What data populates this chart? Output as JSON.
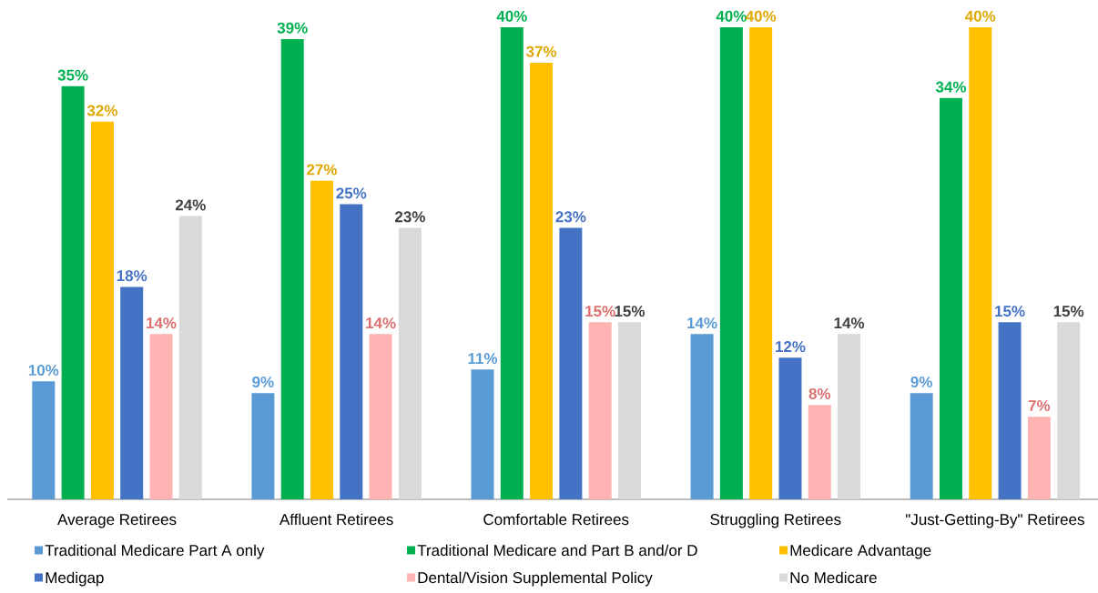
{
  "chart_data": {
    "type": "bar",
    "categories": [
      "Average Retirees",
      "Affluent Retirees",
      "Comfortable Retirees",
      "Struggling Retirees",
      "\"Just-Getting-By\" Retirees"
    ],
    "series": [
      {
        "name": "Traditional Medicare Part A only",
        "color": "#5b9bd5",
        "values": [
          10,
          9,
          11,
          14,
          9
        ],
        "value_labels": [
          "10%",
          "9%",
          "11%",
          "14%",
          "9%"
        ]
      },
      {
        "name": "Traditional Medicare and Part B and/or D",
        "color": "#00b050",
        "values": [
          35,
          39,
          40,
          40,
          34
        ],
        "value_labels": [
          "35%",
          "39%",
          "40%",
          "40%",
          "34%"
        ]
      },
      {
        "name": "Medicare Advantage",
        "color": "#ffc000",
        "values": [
          32,
          27,
          37,
          40,
          40
        ],
        "value_labels": [
          "32%",
          "27%",
          "37%",
          "40%",
          "40%"
        ]
      },
      {
        "name": "Medigap",
        "color": "#4472c4",
        "values": [
          18,
          25,
          23,
          12,
          15
        ],
        "value_labels": [
          "18%",
          "25%",
          "23%",
          "12%",
          "15%"
        ]
      },
      {
        "name": "Dental/Vision Supplemental Policy",
        "color": "#ffb3b3",
        "values": [
          14,
          14,
          15,
          8,
          7
        ],
        "value_labels": [
          "14%",
          "14%",
          "15%",
          "8%",
          "7%"
        ]
      },
      {
        "name": "No Medicare",
        "color": "#d9d9d9",
        "values": [
          24,
          23,
          15,
          14,
          15
        ],
        "value_labels": [
          "24%",
          "23%",
          "15%",
          "14%",
          "15%"
        ]
      }
    ],
    "legend": "bottom"
  }
}
